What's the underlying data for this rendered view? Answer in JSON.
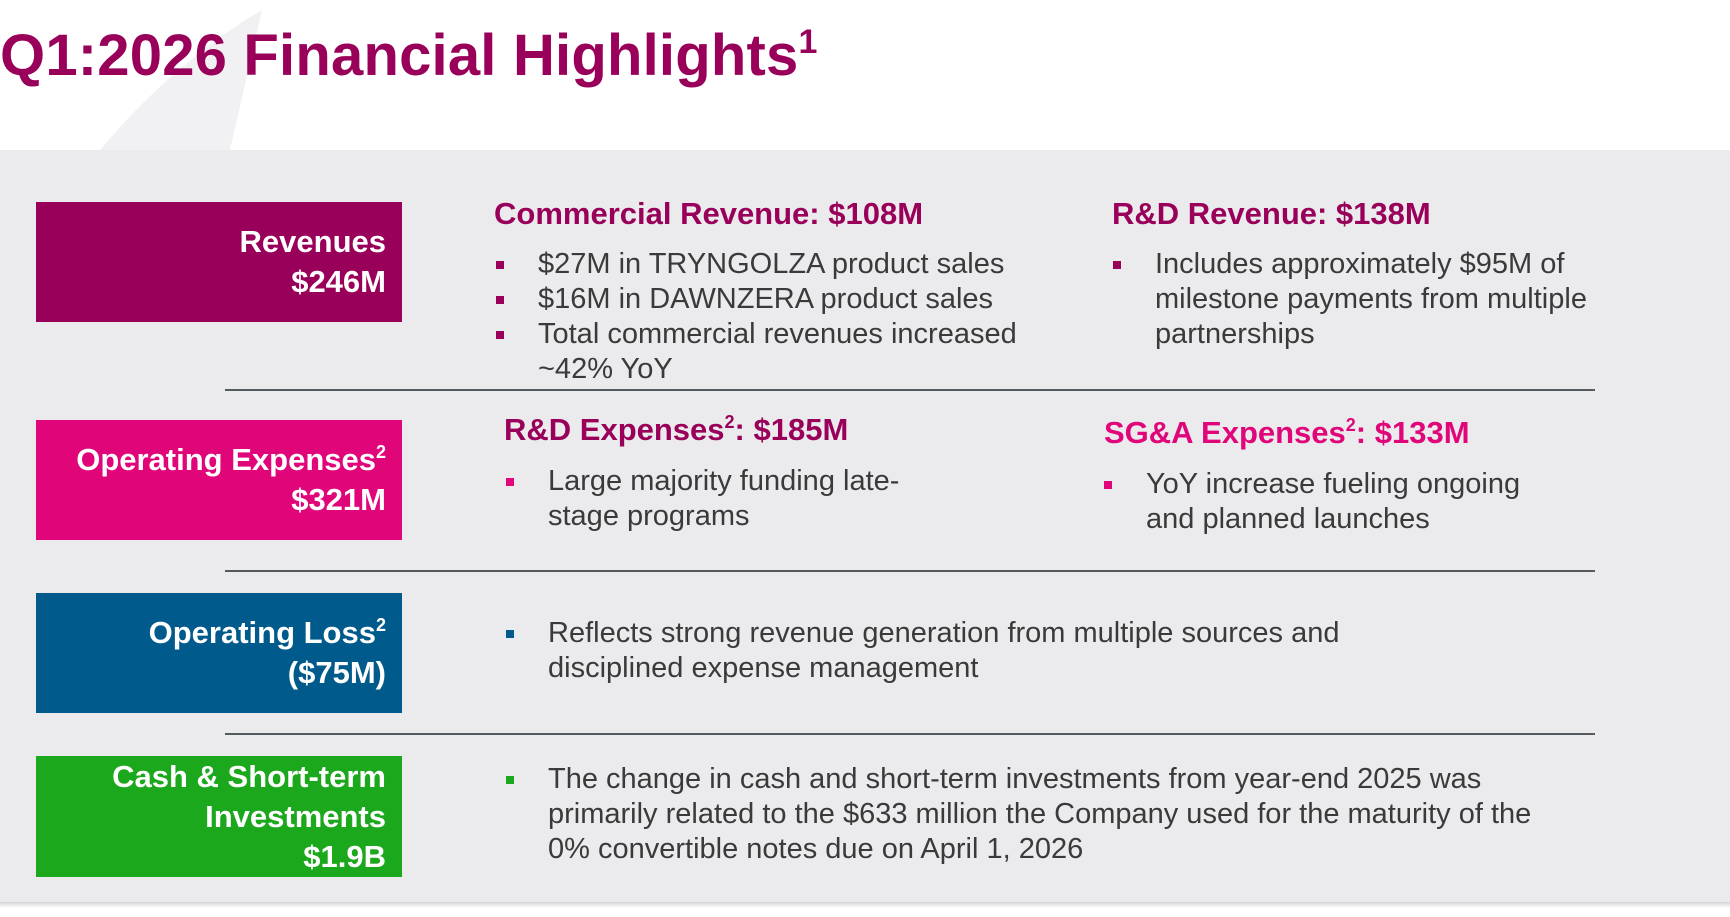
{
  "title": {
    "main": "Q1:2026 Financial Highlights",
    "footnote": "1"
  },
  "colors": {
    "purple": "#99005a",
    "pink": "#e0067a",
    "blue": "#005a8c",
    "green": "#1ca81c",
    "panel": "#ebebed"
  },
  "revenues": {
    "box": {
      "label": "Revenues",
      "value": "$246M"
    },
    "commercial": {
      "heading": "Commercial Revenue: $108M",
      "bullets": [
        "$27M in TRYNGOLZA product sales",
        "$16M in DAWNZERA product sales",
        "Total commercial revenues increased ~42% YoY"
      ]
    },
    "rnd": {
      "heading": "R&D Revenue: $138M",
      "bullets": [
        "Includes approximately $95M of milestone payments from multiple partnerships"
      ]
    }
  },
  "opex": {
    "box": {
      "label": "Operating Expenses",
      "footnote": "2",
      "value": "$321M"
    },
    "rnd": {
      "heading_pre": "R&D Expenses",
      "heading_footnote": "2",
      "heading_post": ": $185M",
      "bullets": [
        "Large majority funding late-stage programs"
      ]
    },
    "sga": {
      "heading_pre": "SG&A Expenses",
      "heading_footnote": "2",
      "heading_post": ": $133M",
      "bullets": [
        "YoY increase fueling ongoing and planned launches"
      ]
    }
  },
  "loss": {
    "box": {
      "label": "Operating Loss",
      "footnote": "2",
      "value": "($75M)"
    },
    "bullets": [
      "Reflects strong revenue generation from multiple sources and disciplined expense management"
    ]
  },
  "cash": {
    "box": {
      "label_line1": "Cash & Short-term",
      "label_line2": "Investments",
      "value": "$1.9B"
    },
    "bullets": [
      "The change in cash and short-term investments from year-end 2025 was primarily related to the $633 million the Company used for the maturity of the 0% convertible notes due on April 1, 2026"
    ]
  }
}
